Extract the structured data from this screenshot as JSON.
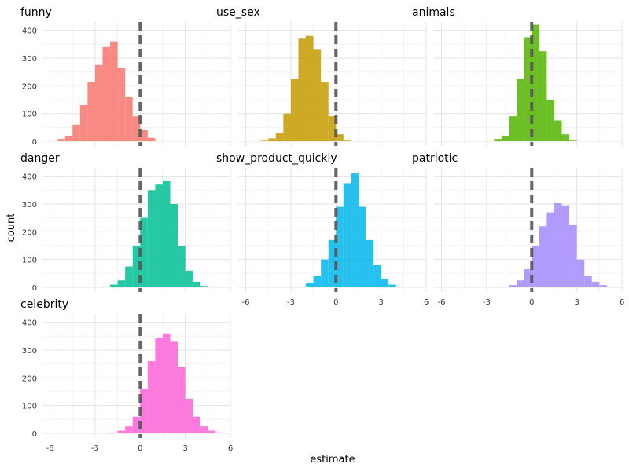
{
  "chart_data": {
    "type": "histogram-facets",
    "xlabel": "estimate",
    "ylabel": "count",
    "x_ticks": [
      -6,
      -3,
      0,
      3,
      6
    ],
    "x_tick_labels": [
      "-6",
      "-3",
      "0",
      "3",
      "6"
    ],
    "y_ticks": [
      0,
      100,
      200,
      300,
      400
    ],
    "y_tick_labels": [
      "0",
      "100",
      "200",
      "300",
      "400"
    ],
    "xlim": [
      -6.5,
      6.0
    ],
    "ylim": [
      0,
      430
    ],
    "bin_width": 0.5,
    "reference_line_x": 0,
    "reference_line_color": "#555555",
    "panels": [
      {
        "name": "funny",
        "color": "#F8766D",
        "bin_start": -6.0,
        "counts": [
          3,
          8,
          20,
          60,
          130,
          215,
          275,
          340,
          360,
          265,
          160,
          90,
          40,
          12,
          3
        ]
      },
      {
        "name": "use_sex",
        "color": "#C49A00",
        "bin_start": -5.5,
        "counts": [
          2,
          5,
          10,
          30,
          100,
          225,
          370,
          380,
          330,
          215,
          90,
          25,
          5,
          2
        ]
      },
      {
        "name": "animals",
        "color": "#53B400",
        "bin_start": -3.0,
        "counts": [
          2,
          8,
          20,
          90,
          225,
          375,
          420,
          325,
          150,
          75,
          25,
          5
        ]
      },
      {
        "name": "danger",
        "color": "#00C094",
        "bin_start": -2.5,
        "counts": [
          3,
          10,
          25,
          75,
          150,
          250,
          350,
          370,
          385,
          300,
          150,
          60,
          20,
          5,
          2
        ]
      },
      {
        "name": "show_product_quickly",
        "color": "#00B6EB",
        "bin_start": -2.5,
        "counts": [
          3,
          15,
          40,
          100,
          170,
          290,
          375,
          410,
          290,
          170,
          80,
          30,
          10,
          2
        ]
      },
      {
        "name": "patriotic",
        "color": "#A58AFF",
        "bin_start": -2.0,
        "counts": [
          3,
          8,
          25,
          65,
          150,
          220,
          270,
          305,
          295,
          225,
          100,
          40,
          20,
          8,
          3
        ]
      },
      {
        "name": "celebrity",
        "color": "#FB61D7",
        "bin_start": -2.0,
        "counts": [
          3,
          10,
          25,
          60,
          160,
          260,
          345,
          360,
          330,
          240,
          125,
          60,
          25,
          10,
          3
        ]
      }
    ]
  }
}
